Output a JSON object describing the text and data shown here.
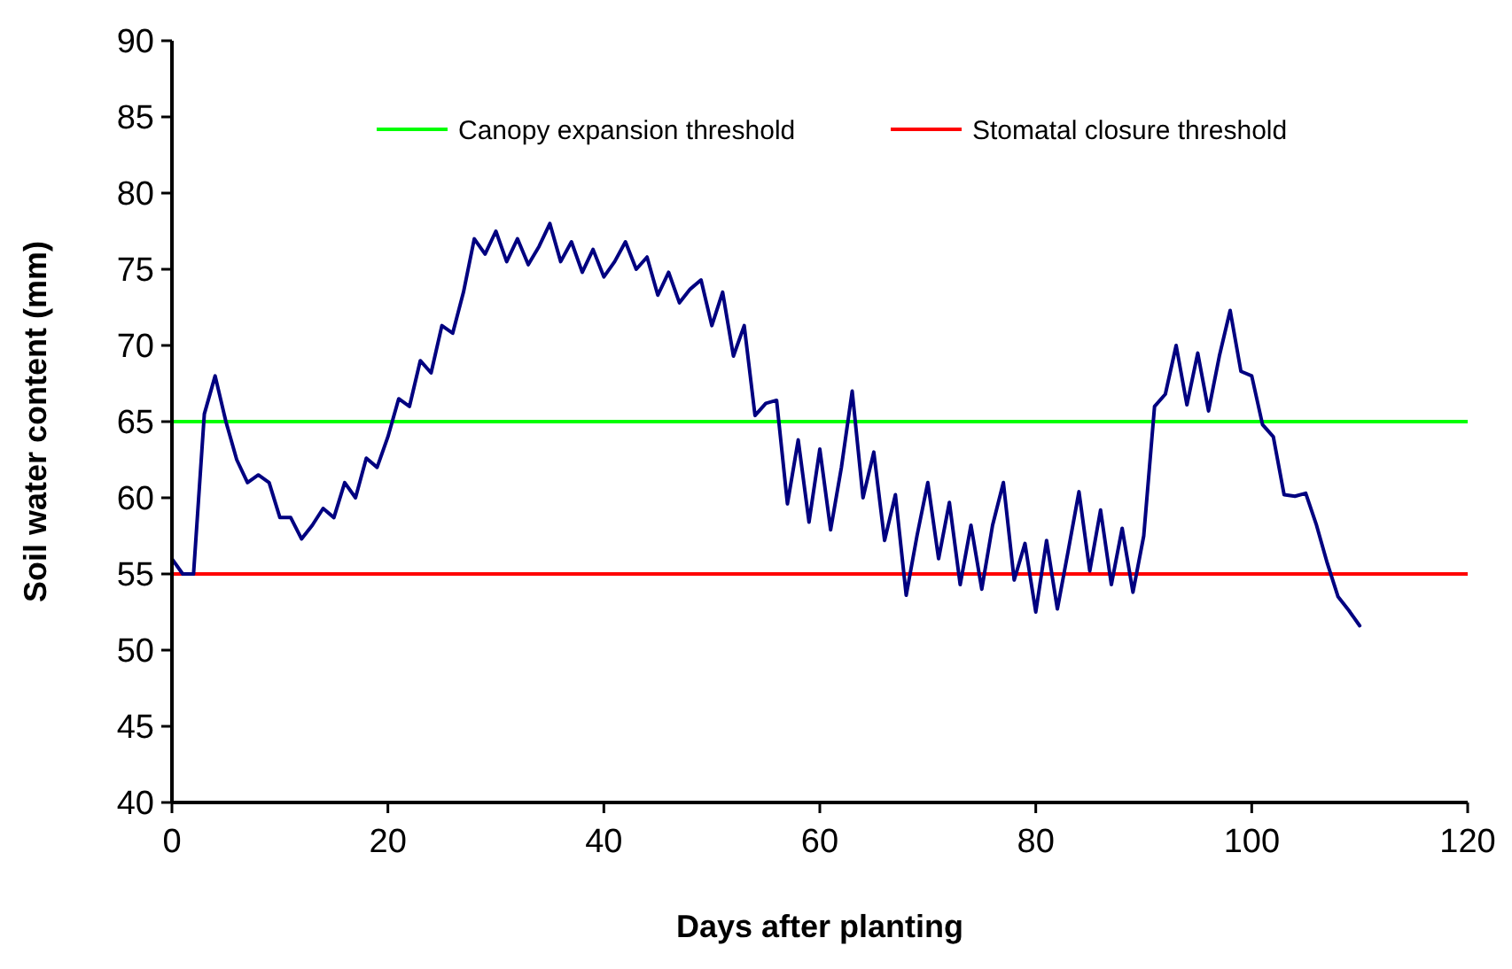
{
  "chart_data": {
    "type": "line",
    "xlabel": "Days after planting",
    "ylabel": "Soil water content (mm)",
    "xlim": [
      0,
      120
    ],
    "xticks": [
      0,
      20,
      40,
      60,
      80,
      100,
      120
    ],
    "ylim": [
      40,
      90
    ],
    "yticks": [
      40,
      45,
      50,
      55,
      60,
      65,
      70,
      75,
      80,
      85,
      90
    ],
    "grid": false,
    "legend": "top",
    "marker": "none",
    "line_style": "solid",
    "series": [
      {
        "color": "#000080",
        "x": [
          0,
          1,
          2,
          3,
          4,
          5,
          6,
          7,
          8,
          9,
          10,
          11,
          12,
          13,
          14,
          15,
          16,
          17,
          18,
          19,
          20,
          21,
          22,
          23,
          24,
          25,
          26,
          27,
          28,
          29,
          30,
          31,
          32,
          33,
          34,
          35,
          36,
          37,
          38,
          39,
          40,
          41,
          42,
          43,
          44,
          45,
          46,
          47,
          48,
          49,
          50,
          51,
          52,
          53,
          54,
          55,
          56,
          57,
          58,
          59,
          60,
          61,
          62,
          63,
          64,
          65,
          66,
          67,
          68,
          69,
          70,
          71,
          72,
          73,
          74,
          75,
          76,
          77,
          78,
          79,
          80,
          81,
          82,
          83,
          84,
          85,
          86,
          87,
          88,
          89,
          90,
          91,
          92,
          93,
          94,
          95,
          96,
          97,
          98,
          99,
          100,
          101,
          102,
          103,
          104,
          105,
          106,
          107,
          108,
          109,
          110
        ],
        "values": [
          56,
          55,
          55,
          65.5,
          68,
          65,
          62.5,
          61,
          61.5,
          61,
          58.7,
          58.7,
          57.3,
          58.2,
          59.3,
          58.7,
          61,
          60,
          62.6,
          62,
          64,
          66.5,
          66,
          69,
          68.2,
          71.3,
          70.8,
          73.5,
          77,
          76,
          77.5,
          75.5,
          77,
          75.3,
          76.5,
          78,
          75.5,
          76.8,
          74.8,
          76.3,
          74.5,
          75.5,
          76.8,
          75,
          75.8,
          73.3,
          74.8,
          72.8,
          73.7,
          74.3,
          71.3,
          73.5,
          69.3,
          71.3,
          65.4,
          66.2,
          66.4,
          59.6,
          63.8,
          58.4,
          63.2,
          57.9,
          62,
          67,
          60,
          63,
          57.2,
          60.2,
          53.6,
          57.5,
          61,
          56,
          59.7,
          54.3,
          58.2,
          54,
          58.2,
          61,
          54.6,
          57,
          52.5,
          57.2,
          52.7,
          56.5,
          60.4,
          55.2,
          59.2,
          54.3,
          58,
          53.8,
          57.5,
          66,
          66.8,
          70,
          66.1,
          69.5,
          65.7,
          69.3,
          72.3,
          68.3,
          68,
          64.8,
          64,
          60.2,
          60.1,
          60.3,
          58.2,
          55.7,
          53.5,
          52.6,
          51.6
        ]
      }
    ],
    "ref_lines": [
      {
        "axis": "y",
        "value": 65,
        "label": "Canopy expansion threshold",
        "color": "#00ff00"
      },
      {
        "axis": "y",
        "value": 55,
        "label": "Stomatal closure threshold",
        "color": "#ff0000"
      }
    ]
  }
}
